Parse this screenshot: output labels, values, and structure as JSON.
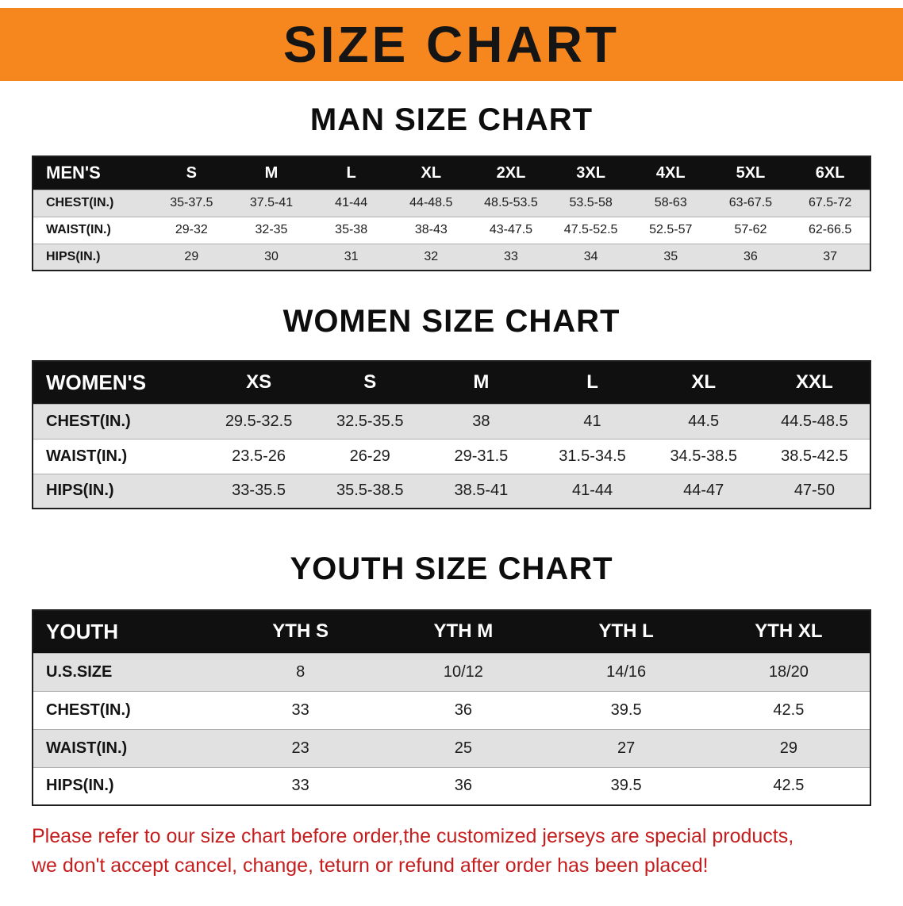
{
  "banner": {
    "title": "SIZE CHART",
    "bg_color": "#f6871f",
    "text_color": "#151515"
  },
  "sections": {
    "men": {
      "heading": "MAN SIZE CHART"
    },
    "women": {
      "heading": "WOMEN SIZE CHART"
    },
    "youth": {
      "heading": "YOUTH SIZE CHART"
    }
  },
  "men_table": {
    "header": [
      "MEN'S",
      "S",
      "M",
      "L",
      "XL",
      "2XL",
      "3XL",
      "4XL",
      "5XL",
      "6XL"
    ],
    "rows": [
      {
        "label": "CHEST(IN.)",
        "values": [
          "35-37.5",
          "37.5-41",
          "41-44",
          "44-48.5",
          "48.5-53.5",
          "53.5-58",
          "58-63",
          "63-67.5",
          "67.5-72"
        ]
      },
      {
        "label": "WAIST(IN.)",
        "values": [
          "29-32",
          "32-35",
          "35-38",
          "38-43",
          "43-47.5",
          "47.5-52.5",
          "52.5-57",
          "57-62",
          "62-66.5"
        ]
      },
      {
        "label": "HIPS(IN.)",
        "values": [
          "29",
          "30",
          "31",
          "32",
          "33",
          "34",
          "35",
          "36",
          "37"
        ]
      }
    ]
  },
  "women_table": {
    "header": [
      "WOMEN'S",
      "XS",
      "S",
      "M",
      "L",
      "XL",
      "XXL"
    ],
    "rows": [
      {
        "label": "CHEST(IN.)",
        "values": [
          "29.5-32.5",
          "32.5-35.5",
          "38",
          "41",
          "44.5",
          "44.5-48.5"
        ]
      },
      {
        "label": "WAIST(IN.)",
        "values": [
          "23.5-26",
          "26-29",
          "29-31.5",
          "31.5-34.5",
          "34.5-38.5",
          "38.5-42.5"
        ]
      },
      {
        "label": "HIPS(IN.)",
        "values": [
          "33-35.5",
          "35.5-38.5",
          "38.5-41",
          "41-44",
          "44-47",
          "47-50"
        ]
      }
    ]
  },
  "youth_table": {
    "header": [
      "YOUTH",
      "YTH S",
      "YTH M",
      "YTH L",
      "YTH XL"
    ],
    "rows": [
      {
        "label": "U.S.SIZE",
        "values": [
          "8",
          "10/12",
          "14/16",
          "18/20"
        ]
      },
      {
        "label": "CHEST(IN.)",
        "values": [
          "33",
          "36",
          "39.5",
          "42.5"
        ]
      },
      {
        "label": "WAIST(IN.)",
        "values": [
          "23",
          "25",
          "27",
          "29"
        ]
      },
      {
        "label": "HIPS(IN.)",
        "values": [
          "33",
          "36",
          "39.5",
          "42.5"
        ]
      }
    ]
  },
  "disclaimer": {
    "line1": "Please refer to our size chart before order,the customized jerseys are special products,",
    "line2": "we don't accept cancel, change, teturn or refund after order has been placed!",
    "color": "#c41e1e"
  }
}
